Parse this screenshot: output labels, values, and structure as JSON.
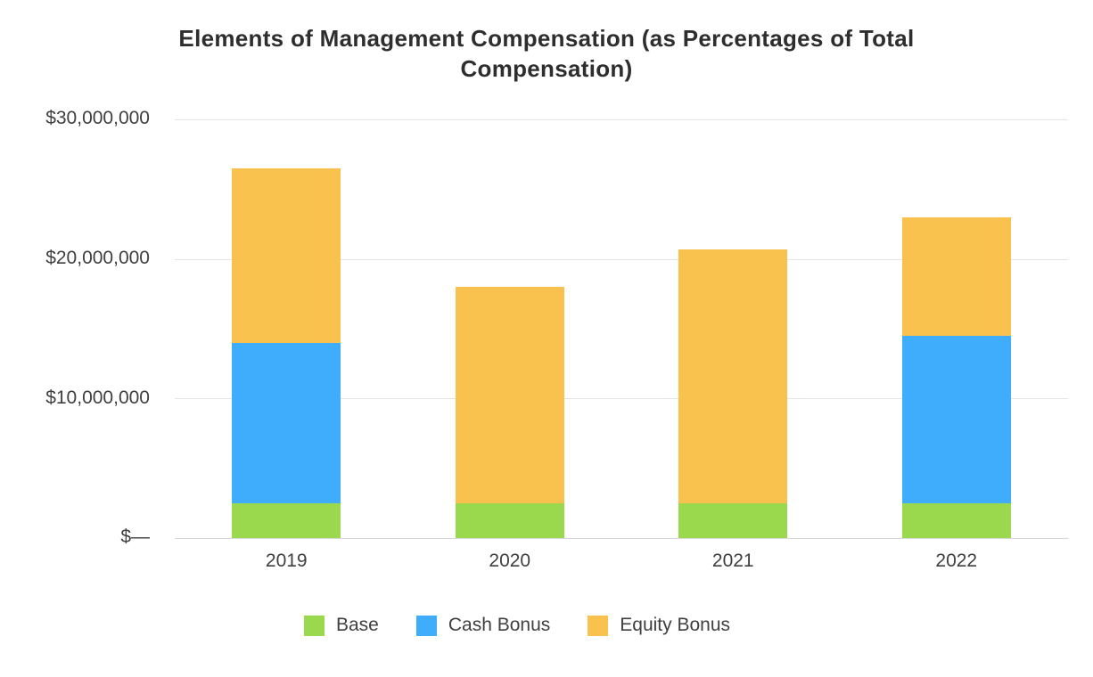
{
  "chart_data": {
    "type": "bar",
    "stacked": true,
    "title": "Elements of Management Compensation (as Percentages of Total Compensation)",
    "categories": [
      "2019",
      "2020",
      "2021",
      "2022"
    ],
    "series": [
      {
        "name": "Base",
        "color": "#9ad84e",
        "values": [
          2500000,
          2500000,
          2500000,
          2500000
        ]
      },
      {
        "name": "Cash Bonus",
        "color": "#3fadfb",
        "values": [
          11500000,
          0,
          0,
          12000000
        ]
      },
      {
        "name": "Equity Bonus",
        "color": "#f9c14d",
        "values": [
          12500000,
          15500000,
          18200000,
          8500000
        ]
      }
    ],
    "xlabel": "",
    "ylabel": "",
    "ylim": [
      0,
      30000000
    ],
    "y_ticks": [
      "$30,000,000",
      "$20,000,000",
      "$10,000,000",
      "$—"
    ],
    "y_tick_values": [
      30000000,
      20000000,
      10000000,
      0
    ],
    "grid": true,
    "legend_position": "bottom",
    "colors": {
      "gridline": "#e4e4e4",
      "axis_line": "#d7d7d7",
      "axis_text": "#3f3f3f",
      "title_text": "#2e2e2e"
    }
  }
}
